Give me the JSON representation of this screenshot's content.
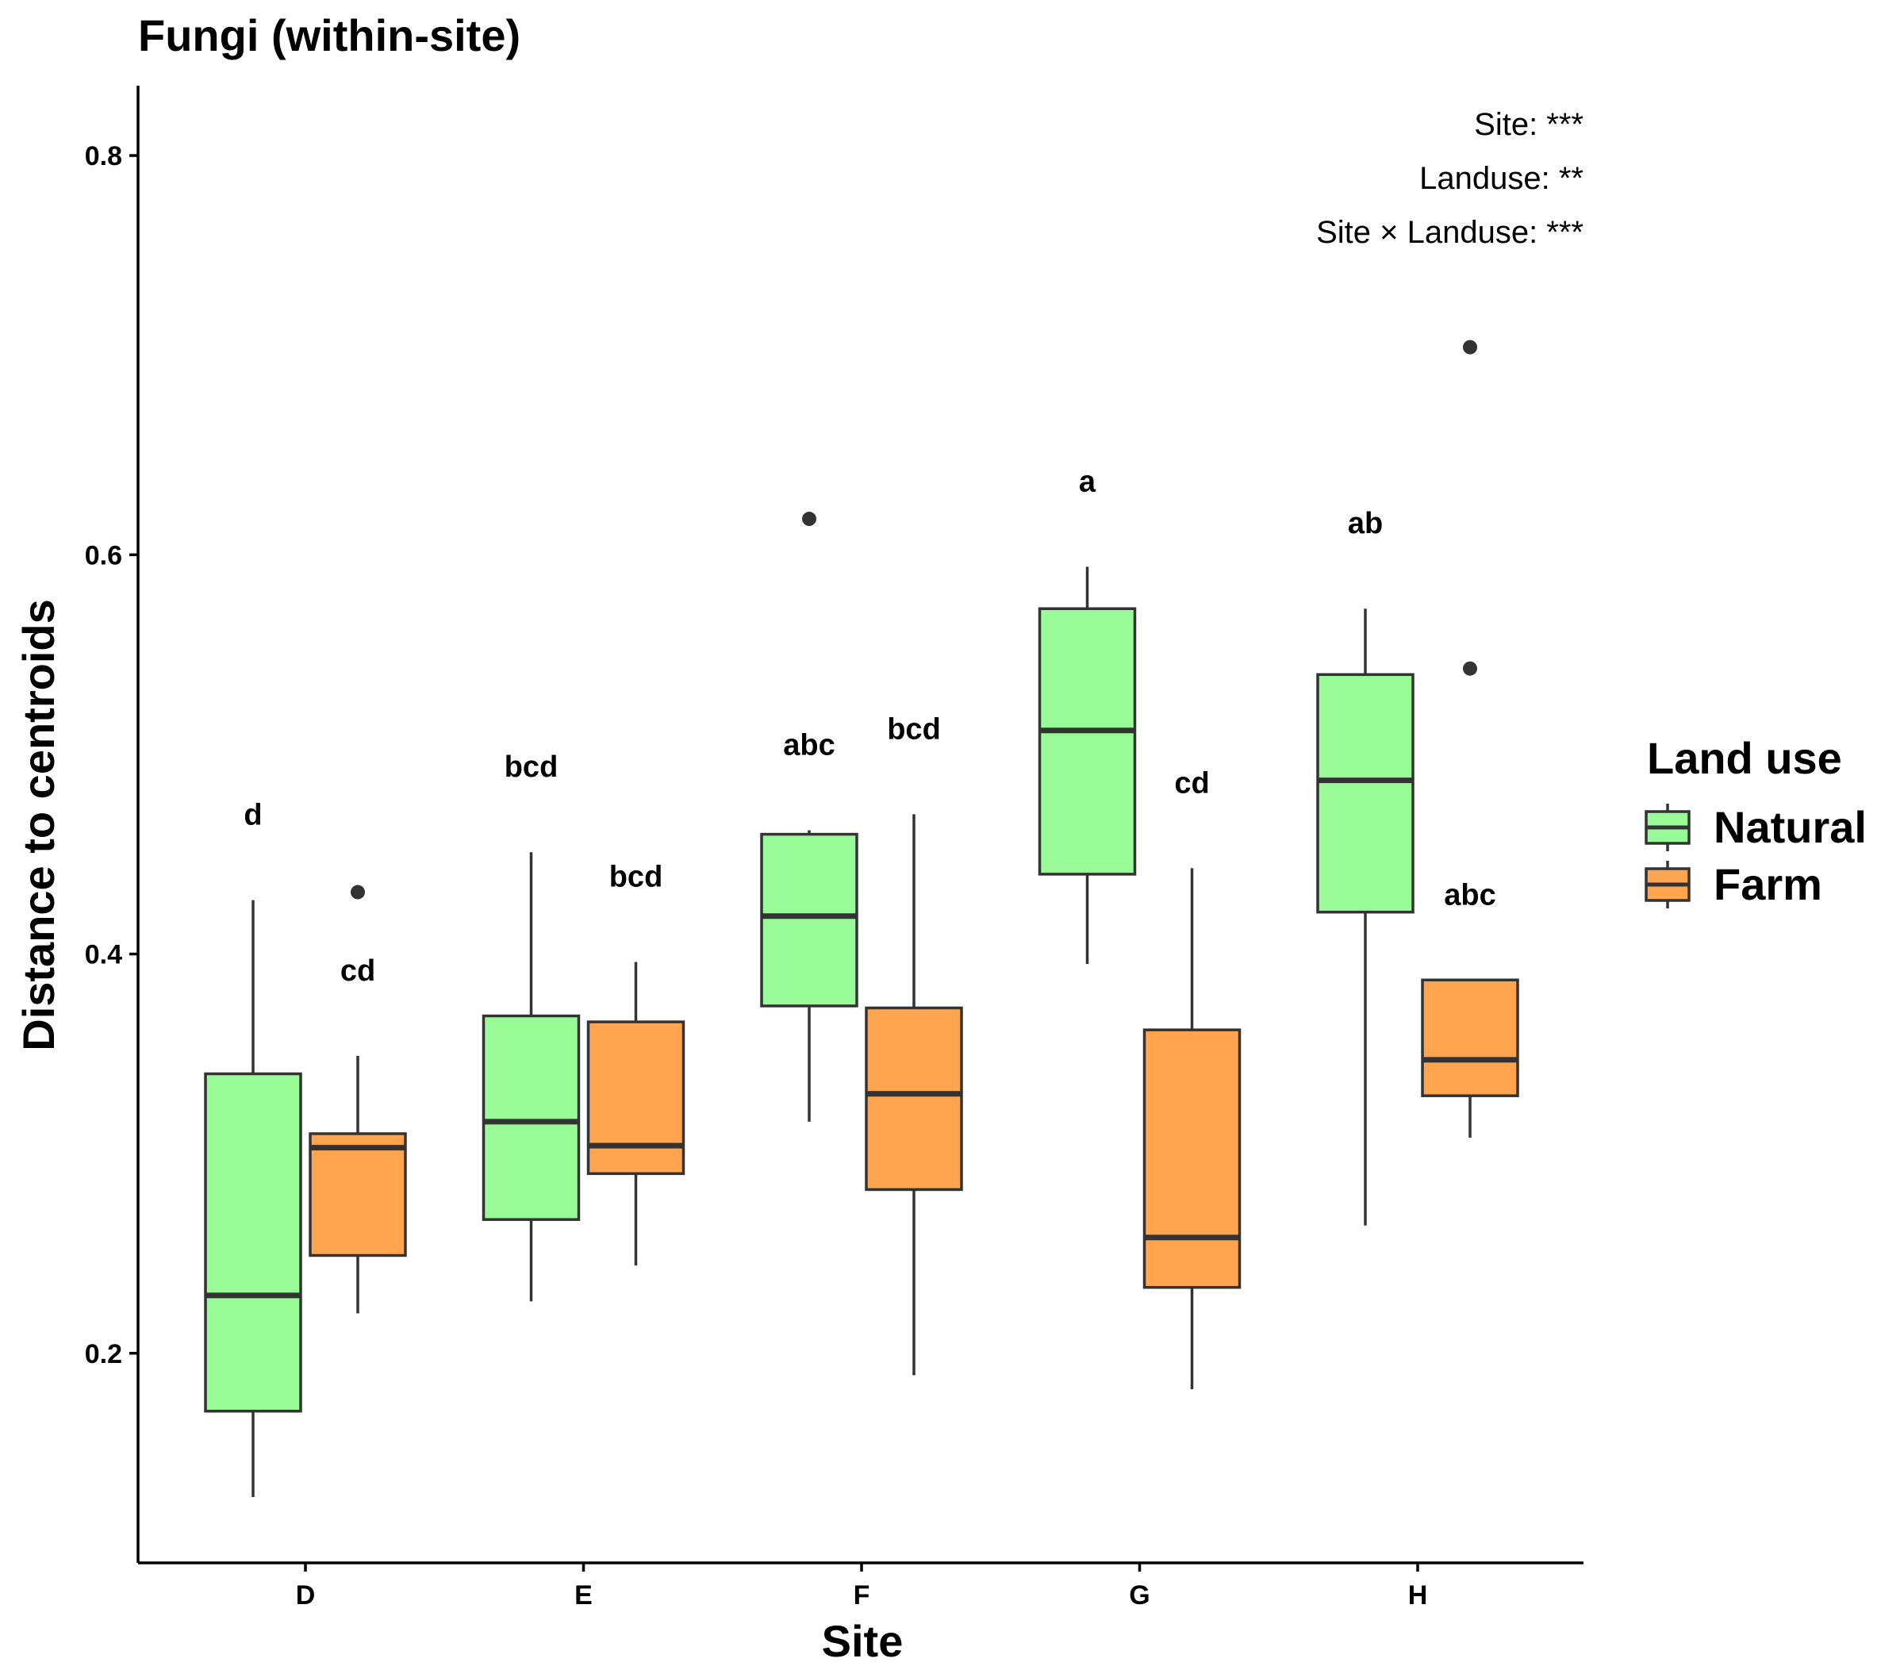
{
  "chart_data": {
    "type": "box",
    "title": "Fungi (within-site)",
    "xlabel": "Site",
    "ylabel": "Distance to centroids",
    "ylim": [
      0.095,
      0.835
    ],
    "yticks": [
      0.2,
      0.4,
      0.6,
      0.8
    ],
    "ytick_labels": [
      "0.2",
      "0.4",
      "0.6",
      "0.8"
    ],
    "categories": [
      "D",
      "E",
      "F",
      "G",
      "H"
    ],
    "legend": {
      "title": "Land use",
      "position": "right"
    },
    "series": [
      {
        "name": "Natural",
        "color": "#98FB98",
        "boxes": [
          {
            "category": "D",
            "lower_whisker": 0.128,
            "q1": 0.171,
            "median": 0.229,
            "q3": 0.34,
            "upper_whisker": 0.427,
            "outliers": [],
            "letter": "d"
          },
          {
            "category": "E",
            "lower_whisker": 0.226,
            "q1": 0.267,
            "median": 0.316,
            "q3": 0.369,
            "upper_whisker": 0.451,
            "outliers": [],
            "letter": "bcd"
          },
          {
            "category": "F",
            "lower_whisker": 0.316,
            "q1": 0.374,
            "median": 0.419,
            "q3": 0.46,
            "upper_whisker": 0.462,
            "outliers": [
              0.618
            ],
            "letter": "abc"
          },
          {
            "category": "G",
            "lower_whisker": 0.395,
            "q1": 0.44,
            "median": 0.512,
            "q3": 0.573,
            "upper_whisker": 0.594,
            "outliers": [],
            "letter": "a"
          },
          {
            "category": "H",
            "lower_whisker": 0.264,
            "q1": 0.421,
            "median": 0.487,
            "q3": 0.54,
            "upper_whisker": 0.573,
            "outliers": [],
            "letter": "ab"
          }
        ]
      },
      {
        "name": "Farm",
        "color": "#FFA54F",
        "boxes": [
          {
            "category": "D",
            "lower_whisker": 0.22,
            "q1": 0.249,
            "median": 0.303,
            "q3": 0.31,
            "upper_whisker": 0.349,
            "outliers": [
              0.431
            ],
            "letter": "cd"
          },
          {
            "category": "E",
            "lower_whisker": 0.244,
            "q1": 0.29,
            "median": 0.304,
            "q3": 0.366,
            "upper_whisker": 0.396,
            "outliers": [],
            "letter": "bcd"
          },
          {
            "category": "F",
            "lower_whisker": 0.189,
            "q1": 0.282,
            "median": 0.33,
            "q3": 0.373,
            "upper_whisker": 0.47,
            "outliers": [],
            "letter": "bcd"
          },
          {
            "category": "G",
            "lower_whisker": 0.182,
            "q1": 0.233,
            "median": 0.258,
            "q3": 0.362,
            "upper_whisker": 0.443,
            "outliers": [],
            "letter": "cd"
          },
          {
            "category": "H",
            "lower_whisker": 0.308,
            "q1": 0.329,
            "median": 0.347,
            "q3": 0.387,
            "upper_whisker": 0.387,
            "outliers": [
              0.704,
              0.543
            ],
            "letter": "abc"
          }
        ]
      }
    ],
    "annotations": [
      "Site: ***",
      "Landuse: **",
      "Site × Landuse: ***"
    ],
    "grid": false
  }
}
